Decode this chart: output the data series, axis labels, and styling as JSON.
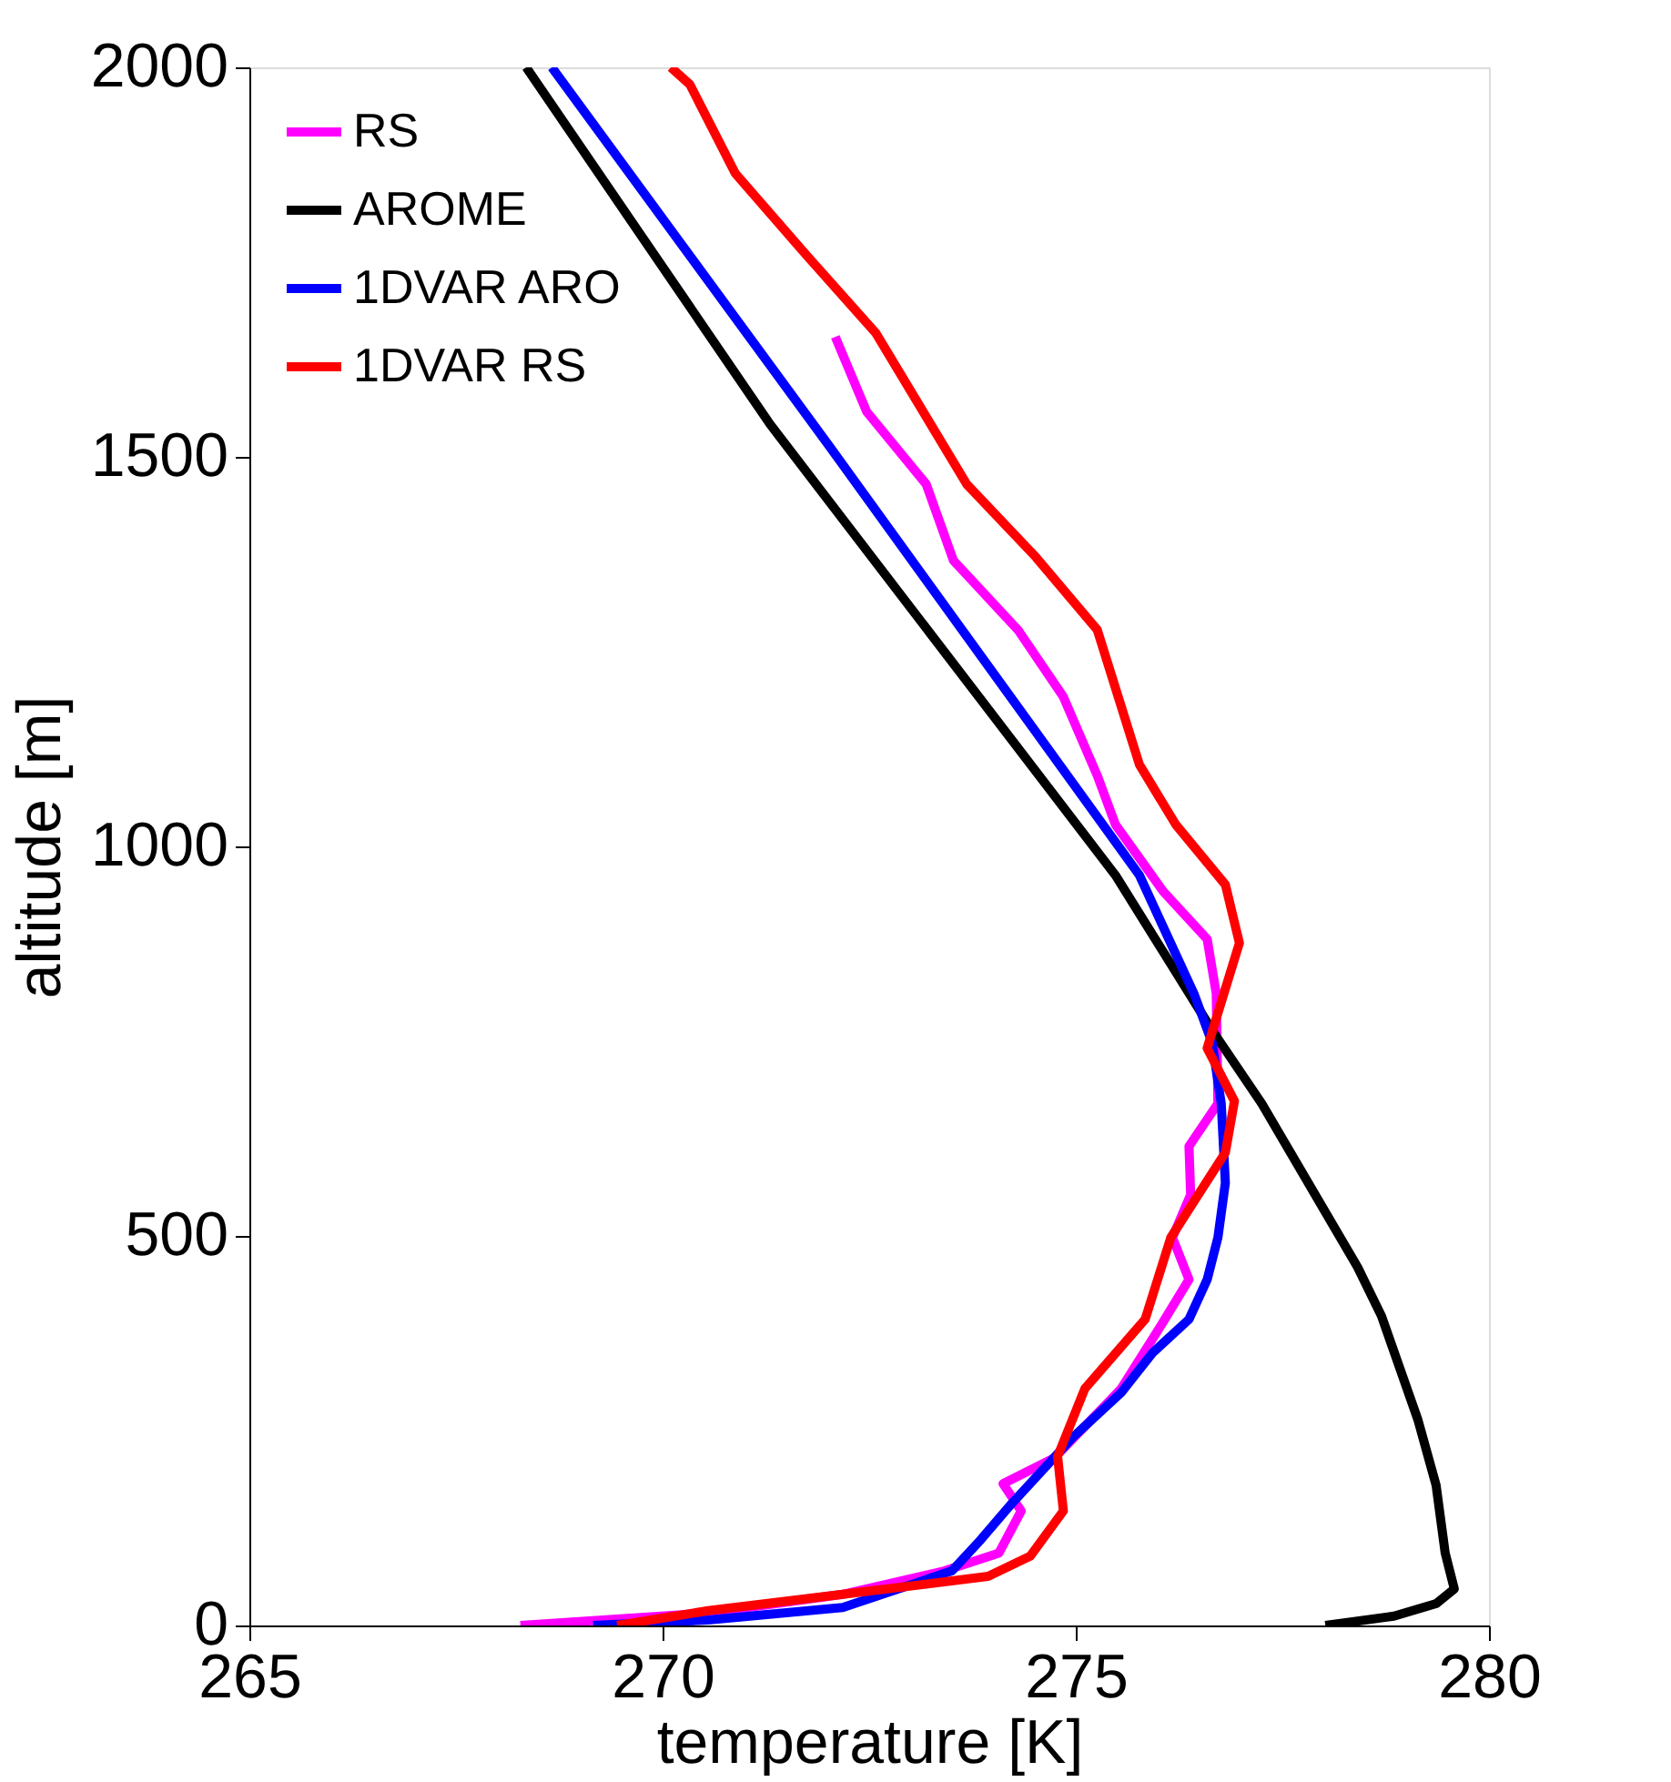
{
  "chart_data": {
    "type": "line",
    "xlabel": "temperature [K]",
    "ylabel": "altitude [m]",
    "xlim": [
      265,
      280
    ],
    "xticks": [
      265,
      270,
      275,
      280
    ],
    "ylim": [
      0,
      2000
    ],
    "yticks": [
      0,
      500,
      1000,
      1500,
      2000
    ],
    "grid": false,
    "legend": "top left",
    "line_style": "solid",
    "marker": "none",
    "series": [
      {
        "name": "RS",
        "color": "#ff00ff",
        "x": [
          272.09,
          272.47,
          273.19,
          273.52,
          274.3,
          274.85,
          275.26,
          275.48,
          276.06,
          276.59,
          276.7,
          276.72,
          276.37,
          276.39,
          276.17,
          276.37,
          276.06,
          275.55,
          274.74,
          274.12,
          274.34,
          274.07,
          273.41,
          272.18,
          270.55,
          268.28
        ],
        "values": [
          1654,
          1558,
          1465,
          1367,
          1278,
          1192,
          1091,
          1028,
          942,
          881,
          811,
          670,
          615,
          553,
          498,
          444,
          390,
          304,
          215,
          182,
          147,
          93,
          70,
          40,
          16,
          0
        ]
      },
      {
        "name": "AROME",
        "color": "#000000",
        "x": [
          268.35,
          271.3,
          275.48,
          276.65,
          277.25,
          278.41,
          278.7,
          279.14,
          279.36,
          279.47,
          279.58,
          279.36,
          278.85,
          278.02
        ],
        "values": [
          2000,
          1542,
          963,
          764,
          670,
          460,
          397,
          264,
          180,
          93,
          47,
          28,
          12,
          0
        ]
      },
      {
        "name": "1DVAR ARO",
        "color": "#0000ff",
        "x": [
          268.66,
          272.03,
          275.77,
          276.43,
          276.65,
          276.76,
          276.81,
          276.72,
          276.59,
          276.37,
          275.93,
          275.55,
          274.96,
          274.23,
          273.85,
          273.5,
          272.18,
          270.55,
          269.16
        ],
        "values": [
          2000,
          1512,
          963,
          811,
          748,
          670,
          568,
          498,
          444,
          393,
          350,
          299,
          241,
          157,
          110,
          70,
          23,
          7,
          0
        ]
      },
      {
        "name": "1DVAR RS",
        "color": "#ff0000",
        "x": [
          270.1,
          270.33,
          270.88,
          271.74,
          272.58,
          273.68,
          274.52,
          275.26,
          275.77,
          276.21,
          276.81,
          276.98,
          276.59,
          276.92,
          276.81,
          276.15,
          275.84,
          275.11,
          274.78,
          274.85,
          274.45,
          273.94,
          272.18,
          270.55,
          269.45
        ],
        "values": [
          2000,
          1978,
          1864,
          1759,
          1659,
          1465,
          1371,
          1278,
          1105,
          1028,
          951,
          876,
          741,
          673,
          607,
          498,
          393,
          304,
          217,
          147,
          89,
          63,
          40,
          19,
          0
        ]
      }
    ]
  }
}
